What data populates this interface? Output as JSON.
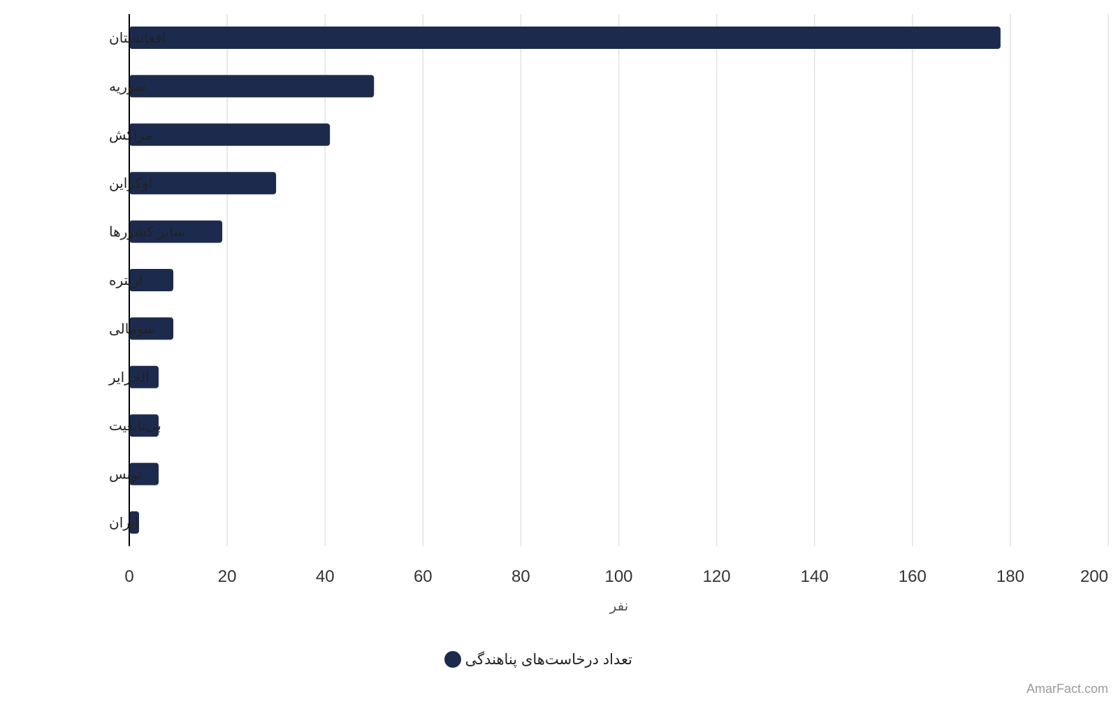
{
  "chart_data": {
    "type": "bar",
    "orientation": "horizontal",
    "categories": [
      "افغانستان",
      "سوریه",
      "مراکش",
      "اوکراین",
      "سایر کشورها",
      "اریتره",
      "سومالی",
      "الجزایر",
      "بی‌تابعیت",
      "تونس",
      "ایران"
    ],
    "series": [
      {
        "name": "تعداد درخاست‌های پناهندگی",
        "values": [
          178,
          50,
          41,
          30,
          19,
          9,
          9,
          6,
          6,
          6,
          2
        ]
      }
    ],
    "xlabel": "نفر",
    "ylabel": "",
    "xlim": [
      0,
      200
    ],
    "xticks": [
      0,
      20,
      40,
      60,
      80,
      100,
      120,
      140,
      160,
      180,
      200
    ],
    "grid": "vertical",
    "legend_position": "bottom-center",
    "bar_color": "#1c2b4d",
    "grid_color": "#e2e2e2",
    "axis_color": "#000000"
  },
  "watermark": "AmarFact.com"
}
